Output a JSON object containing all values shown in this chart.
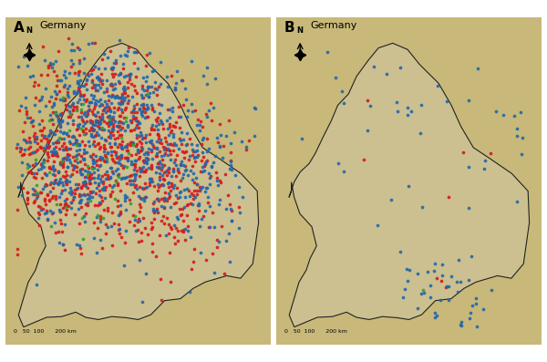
{
  "title_A": "A",
  "title_B": "B",
  "country_label": "Germany",
  "panel_A": {
    "cattle_count": 791,
    "sheep_count": 860,
    "goat_count": 47,
    "cattle_color": "#2166ac",
    "sheep_color": "#d6191b",
    "goat_color": "#33a02c",
    "dot_size": 7
  },
  "panel_B": {
    "cattle_count": 82,
    "sheep_count": 8,
    "goat_count": 1,
    "cattle_color": "#2166ac",
    "sheep_color": "#d6191b",
    "goat_color": "#33a02c",
    "dot_size": 7
  },
  "extent": [
    5.5,
    15.5,
    46.8,
    55.6
  ],
  "water_color": "#b8d4e8",
  "land_color_low": "#d4c48a",
  "land_color_high": "#a0916e",
  "mountain_color": "#c4a882",
  "border_color": "#333333",
  "scale_bar": "0   50  100      200 km",
  "label_fontsize": 11,
  "country_fontsize": 8,
  "north_label": "N",
  "dot_alpha": 0.9
}
